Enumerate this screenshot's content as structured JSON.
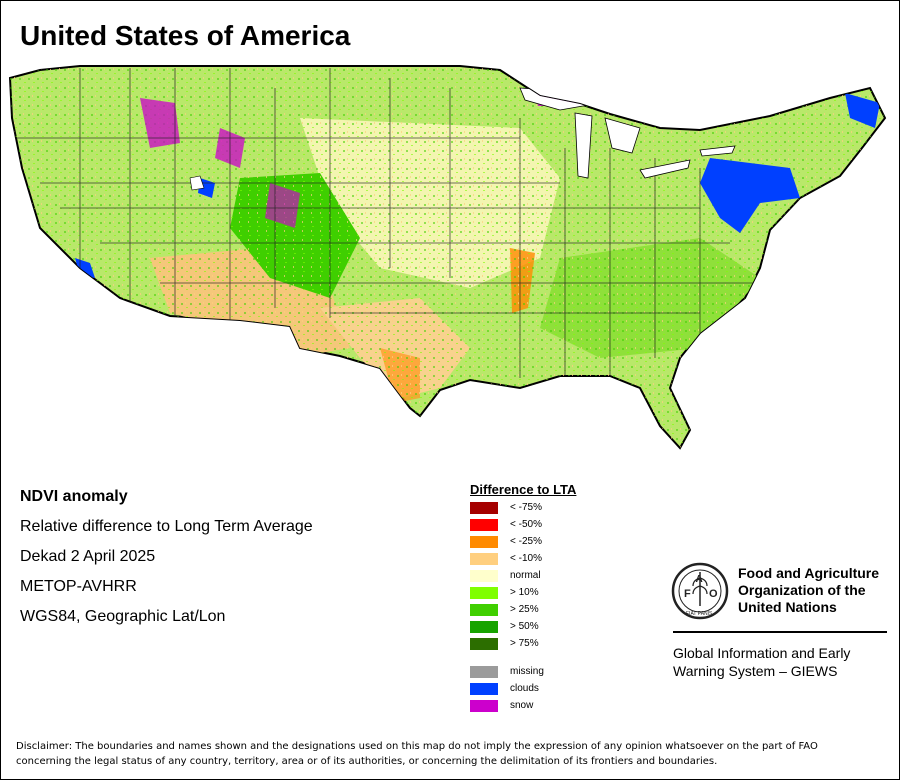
{
  "title": "United States of America",
  "info": {
    "line1": "NDVI anomaly",
    "line2": "Relative difference to Long Term Average",
    "line3": "Dekad 2 April 2025",
    "line4": "METOP-AVHRR",
    "line5": "WGS84, Geographic Lat/Lon"
  },
  "legend": {
    "title": "Difference to LTA",
    "items": [
      {
        "label": "< -75%",
        "color": "#a50000"
      },
      {
        "label": "< -50%",
        "color": "#ff0000"
      },
      {
        "label": "< -25%",
        "color": "#ff8a00"
      },
      {
        "label": "< -10%",
        "color": "#ffcf7f"
      },
      {
        "label": "normal",
        "color": "#ffffcc"
      },
      {
        "label": "> 10%",
        "color": "#7fff00"
      },
      {
        "label": "> 25%",
        "color": "#3fcf00"
      },
      {
        "label": "> 50%",
        "color": "#17a300"
      },
      {
        "label": "> 75%",
        "color": "#2c6e00"
      },
      {
        "label": "missing",
        "color": "#9b9b9b"
      },
      {
        "label": "clouds",
        "color": "#0040ff"
      },
      {
        "label": "snow",
        "color": "#cc00cc"
      }
    ]
  },
  "fao": {
    "name_line1": "Food and Agriculture",
    "name_line2": "Organization of the",
    "name_line3": "United Nations",
    "logo_text": "FAO",
    "motto": "FIAT PANIS",
    "giews_line1": "Global Information and Early",
    "giews_line2": "Warning System – GIEWS"
  },
  "disclaimer": {
    "line1": "Disclaimer: The boundaries and names shown and the designations used on this map do not imply the expression of any opinion whatsoever on the part of FAO",
    "line2": "concerning the legal status of any country, territory, area or of its authorities, or concerning the delimitation of its frontiers and boundaries."
  }
}
